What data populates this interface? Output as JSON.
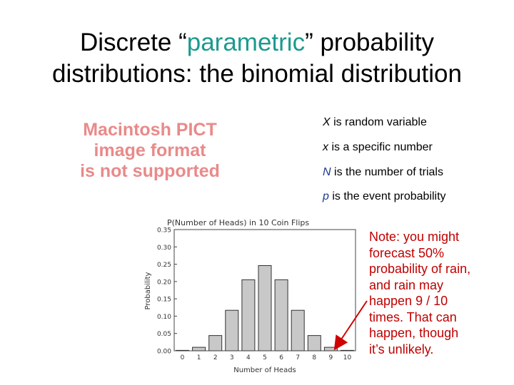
{
  "title": {
    "line1_pre": "Discrete “",
    "line1_accent": "parametric",
    "line1_post": "” probability",
    "line2": "distributions: the binomial distribution",
    "accent_color": "#1b9a8e"
  },
  "placeholder": {
    "line1": "Macintosh PICT",
    "line2": "image format",
    "line3": "is not supported"
  },
  "bullets": [
    {
      "var": "X",
      "text": " is random variable"
    },
    {
      "var": "x",
      "text": " is a specific number"
    },
    {
      "var": "N",
      "text": " is the number of trials"
    },
    {
      "var": "p",
      "text": " is the event probability"
    }
  ],
  "note": {
    "line1": "Note: you might",
    "line2": "forecast 50%",
    "line3": "probability of rain,",
    "line4": "and rain may",
    "line5": "happen 9 / 10",
    "line6": "times.  That can",
    "line7": "happen, though",
    "line8": "it’s unlikely.",
    "color": "#c00000"
  },
  "chart_data": {
    "type": "bar",
    "title": "P(Number of Heads) in 10 Coin Flips",
    "xlabel": "Number of Heads",
    "ylabel": "Probability",
    "categories": [
      "0",
      "1",
      "2",
      "3",
      "4",
      "5",
      "6",
      "7",
      "8",
      "9",
      "10"
    ],
    "values": [
      0.001,
      0.01,
      0.044,
      0.117,
      0.205,
      0.246,
      0.205,
      0.117,
      0.044,
      0.01,
      0.001
    ],
    "ylim": [
      0,
      0.35
    ],
    "yticks": [
      "0.00",
      "0.05",
      "0.10",
      "0.15",
      "0.20",
      "0.25",
      "0.30",
      "0.35"
    ],
    "grid": false,
    "bar_color": "#c8c8c8"
  }
}
